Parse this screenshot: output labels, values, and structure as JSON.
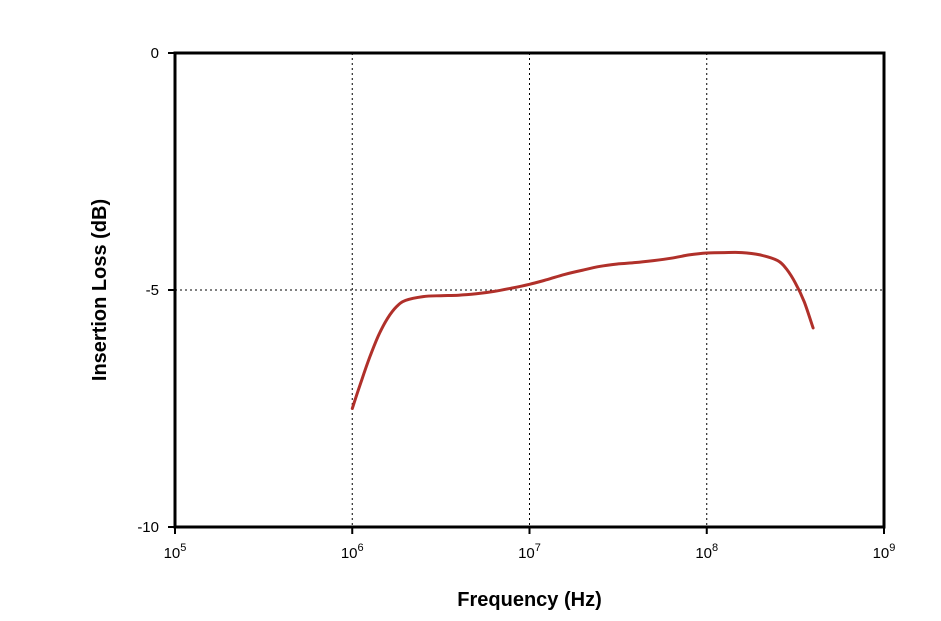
{
  "chart_data": {
    "type": "line",
    "xlabel": "Frequency (Hz)",
    "ylabel": "Insertion Loss (dB)",
    "x_scale": "log",
    "xlim": [
      100000,
      1000000000
    ],
    "ylim": [
      -10,
      0
    ],
    "x_ticks": [
      {
        "value": 100000,
        "base": "10",
        "exp": "5"
      },
      {
        "value": 1000000,
        "base": "10",
        "exp": "6"
      },
      {
        "value": 10000000,
        "base": "10",
        "exp": "7"
      },
      {
        "value": 100000000,
        "base": "10",
        "exp": "8"
      },
      {
        "value": 1000000000,
        "base": "10",
        "exp": "9"
      }
    ],
    "y_ticks": [
      {
        "value": 0,
        "label": "0"
      },
      {
        "value": -5,
        "label": "-5"
      },
      {
        "value": -10,
        "label": "-10"
      }
    ],
    "grid_x": [
      1000000,
      10000000,
      100000000
    ],
    "grid_y": [
      -5
    ],
    "series": [
      {
        "color": "#b0302a",
        "x": [
          1000000,
          1130000,
          1260000,
          1410000,
          1580000,
          1780000,
          2000000,
          2510000,
          3160000,
          3980000,
          5010000,
          6310000,
          7940000,
          10000000,
          12600000,
          15800000,
          20000000,
          25100000,
          31600000,
          39800000,
          50100000,
          63100000,
          79400000,
          100000000,
          126000000,
          158000000,
          200000000,
          251000000,
          282000000,
          316000000,
          355000000,
          398000000
        ],
        "y": [
          -7.5,
          -6.9,
          -6.4,
          -5.95,
          -5.6,
          -5.35,
          -5.22,
          -5.14,
          -5.12,
          -5.11,
          -5.08,
          -5.03,
          -4.96,
          -4.88,
          -4.78,
          -4.67,
          -4.58,
          -4.5,
          -4.45,
          -4.42,
          -4.38,
          -4.33,
          -4.26,
          -4.22,
          -4.21,
          -4.21,
          -4.26,
          -4.38,
          -4.56,
          -4.85,
          -5.25,
          -5.8
        ]
      }
    ]
  }
}
